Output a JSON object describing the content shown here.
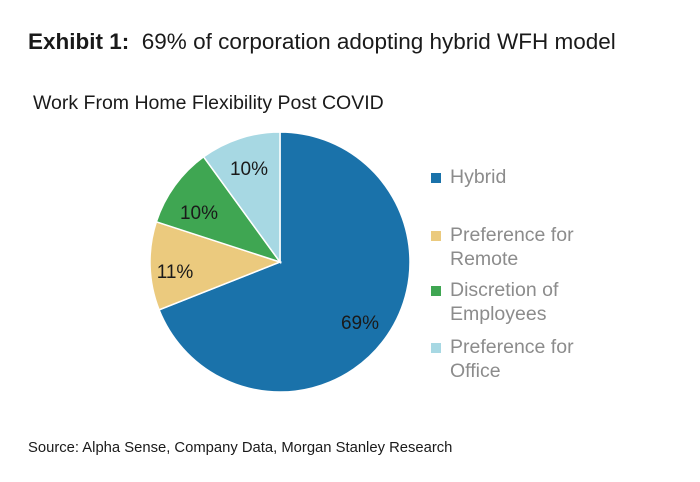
{
  "heading": {
    "label": "Exhibit 1:",
    "text": "69% of corporation adopting hybrid WFH model"
  },
  "source": "Source: Alpha Sense, Company Data, Morgan Stanley Research",
  "colors": {
    "hybrid": "#1a72aa",
    "remote": "#ebca7e",
    "discretion": "#3fa652",
    "office": "#a7d8e3"
  },
  "chart_data": {
    "type": "pie",
    "title": "Work From Home Flexibility Post COVID",
    "slices": [
      {
        "name": "Hybrid",
        "legend_lines": [
          "Hybrid"
        ],
        "value": 69,
        "label": "69%",
        "color": "#1a72aa"
      },
      {
        "name": "Preference for Remote",
        "legend_lines": [
          "Preference for",
          "Remote"
        ],
        "value": 11,
        "label": "11%",
        "color": "#ebca7e"
      },
      {
        "name": "Discretion of Employees",
        "legend_lines": [
          "Discretion of",
          "Employees"
        ],
        "value": 10,
        "label": "10%",
        "color": "#3fa652"
      },
      {
        "name": "Preference for Office",
        "legend_lines": [
          "Preference for",
          "Office"
        ],
        "value": 10,
        "label": "10%",
        "color": "#a7d8e3"
      }
    ],
    "start": "12 o'clock",
    "direction": "clockwise",
    "legend_position": "right"
  }
}
